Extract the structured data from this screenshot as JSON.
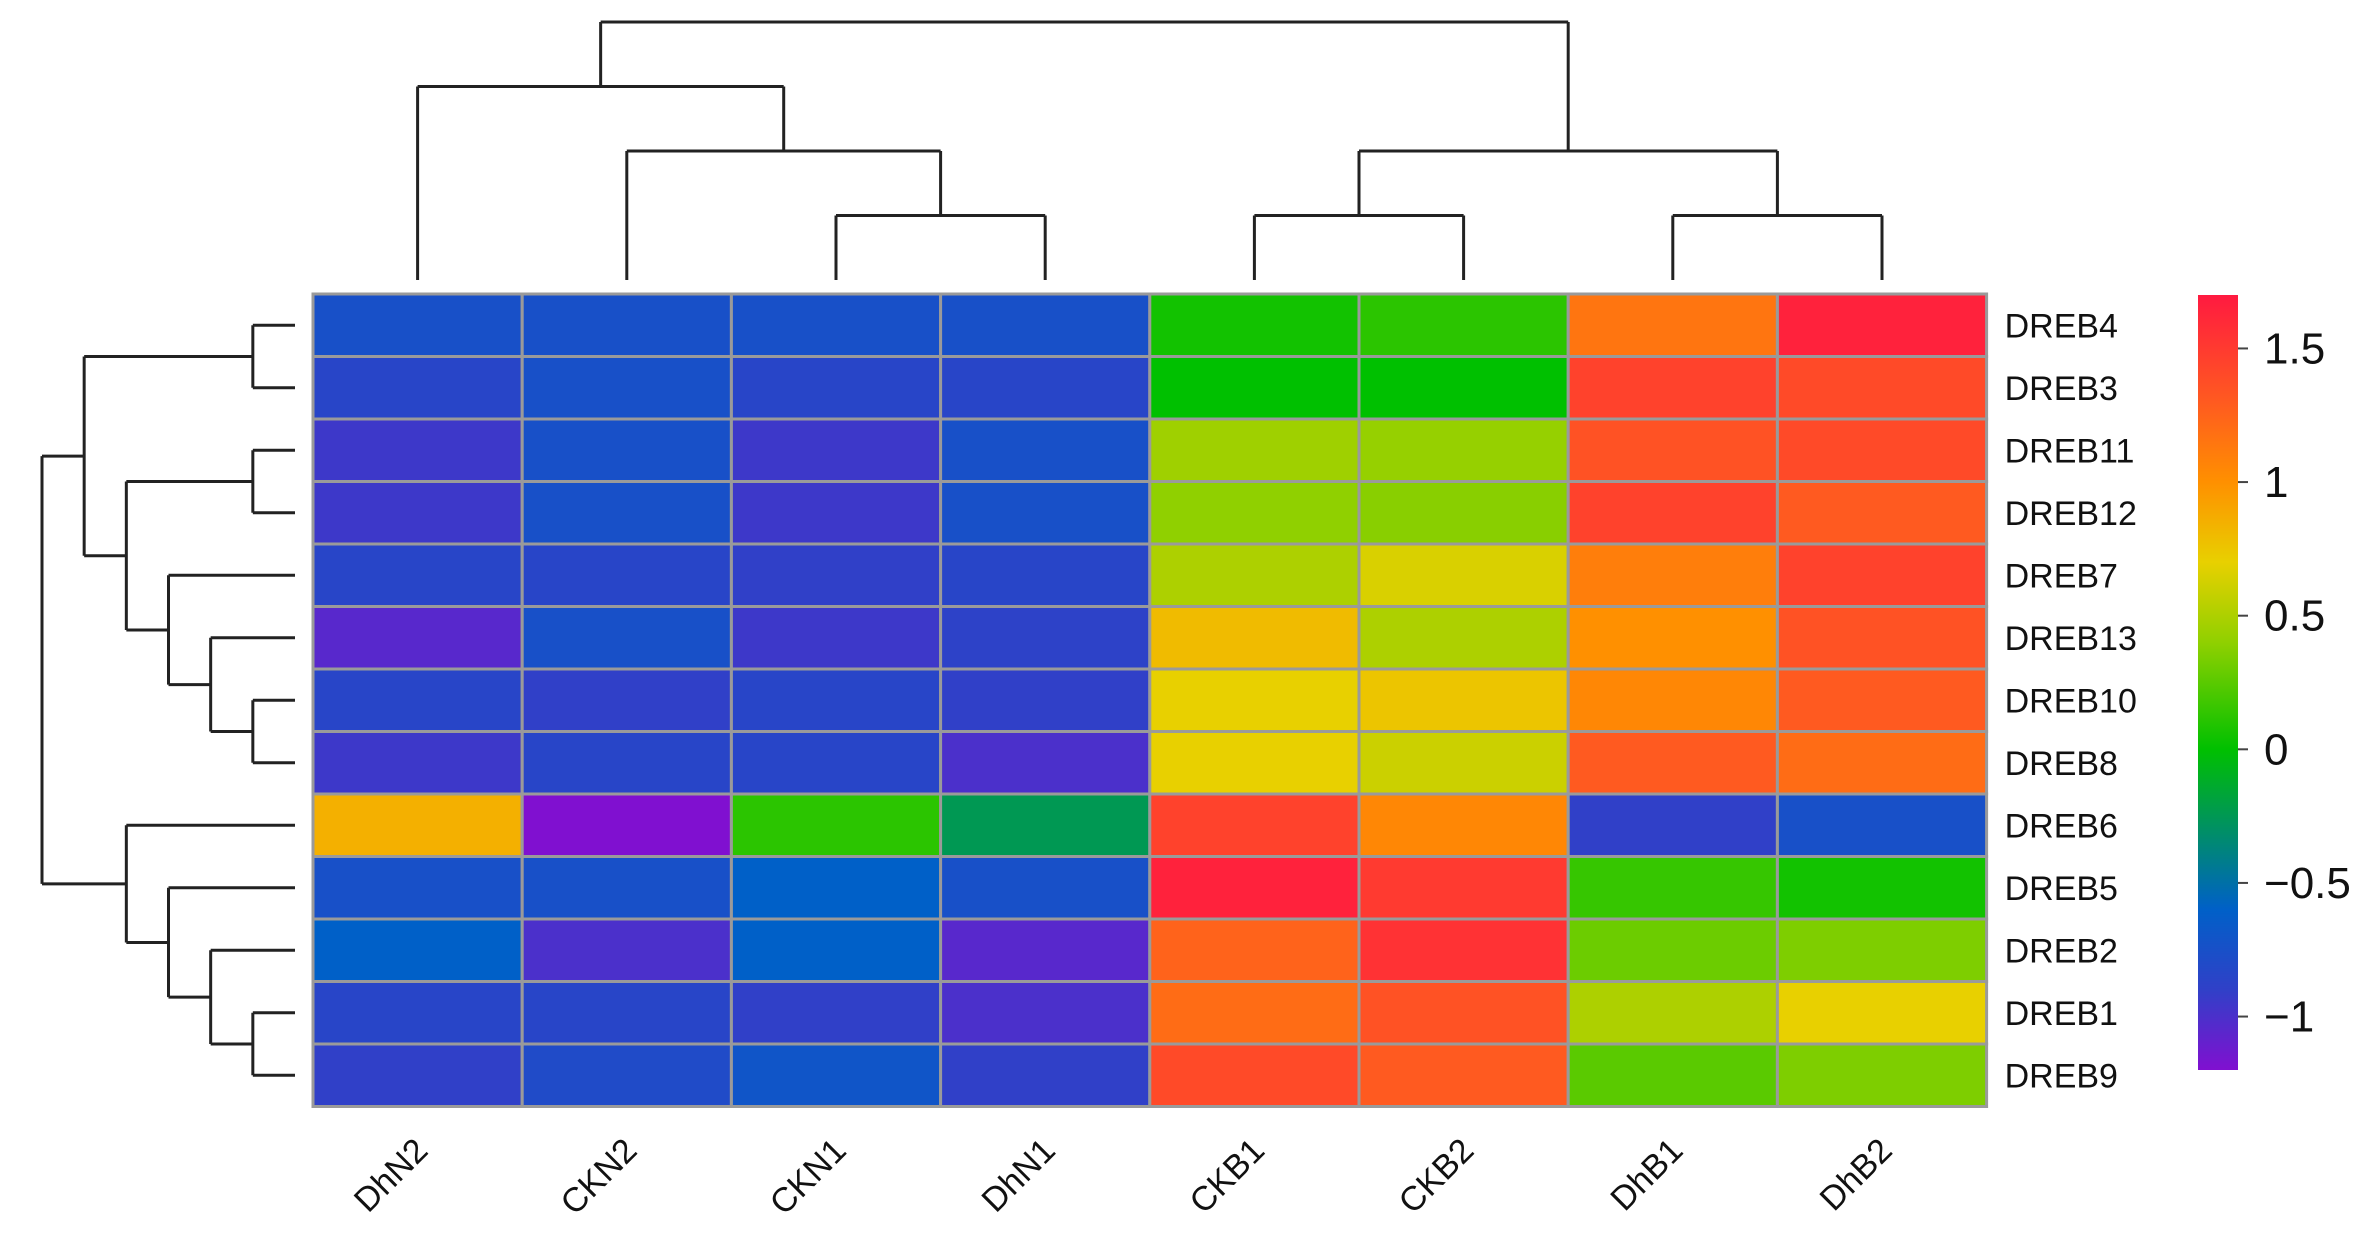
{
  "chart_data": {
    "type": "heatmap",
    "columns": [
      "DhN2",
      "CKN2",
      "CKN1",
      "DhN1",
      "CKB1",
      "CKB2",
      "DhB1",
      "DhB2"
    ],
    "rows": [
      "DREB4",
      "DREB3",
      "DREB11",
      "DREB12",
      "DREB7",
      "DREB13",
      "DREB10",
      "DREB8",
      "DREB6",
      "DREB5",
      "DREB2",
      "DREB1",
      "DREB9"
    ],
    "values": [
      [
        -0.75,
        -0.75,
        -0.75,
        -0.75,
        0.05,
        0.12,
        1.15,
        1.65
      ],
      [
        -0.85,
        -0.75,
        -0.85,
        -0.85,
        0.0,
        0.0,
        1.45,
        1.4
      ],
      [
        -0.95,
        -0.75,
        -0.95,
        -0.75,
        0.45,
        0.42,
        1.35,
        1.4
      ],
      [
        -0.95,
        -0.75,
        -0.95,
        -0.75,
        0.4,
        0.38,
        1.45,
        1.3
      ],
      [
        -0.85,
        -0.85,
        -0.9,
        -0.85,
        0.5,
        0.65,
        1.1,
        1.45
      ],
      [
        -1.05,
        -0.75,
        -0.95,
        -0.88,
        0.8,
        0.5,
        1.0,
        1.35
      ],
      [
        -0.85,
        -0.9,
        -0.85,
        -0.9,
        0.7,
        0.75,
        1.05,
        1.3
      ],
      [
        -0.95,
        -0.85,
        -0.85,
        -1.0,
        0.7,
        0.6,
        1.3,
        1.2
      ],
      [
        0.85,
        -1.2,
        0.12,
        -0.25,
        1.45,
        1.05,
        -0.9,
        -0.75
      ],
      [
        -0.75,
        -0.75,
        -0.6,
        -0.75,
        1.65,
        1.5,
        0.15,
        0.05
      ],
      [
        -0.6,
        -1.0,
        -0.6,
        -1.05,
        1.25,
        1.55,
        0.3,
        0.35
      ],
      [
        -0.85,
        -0.85,
        -0.9,
        -1.0,
        1.2,
        1.35,
        0.5,
        0.7
      ],
      [
        -0.9,
        -0.8,
        -0.7,
        -0.9,
        1.4,
        1.3,
        0.25,
        0.35
      ]
    ],
    "legend": {
      "min": -1.2,
      "max": 1.7,
      "ticks": [
        1.5,
        1,
        0.5,
        0,
        -0.5,
        -1
      ],
      "tick_labels": [
        "1.5",
        "1",
        "0.5",
        "0",
        "−0.5",
        "−1"
      ],
      "stops": [
        {
          "value": -1.2,
          "color": "#8010d0"
        },
        {
          "value": -0.9,
          "color": "#3040c8"
        },
        {
          "value": -0.6,
          "color": "#0060c8"
        },
        {
          "value": 0.0,
          "color": "#00c000"
        },
        {
          "value": 0.4,
          "color": "#90d000"
        },
        {
          "value": 0.7,
          "color": "#e8d000"
        },
        {
          "value": 1.0,
          "color": "#ff9000"
        },
        {
          "value": 1.3,
          "color": "#ff5a20"
        },
        {
          "value": 1.7,
          "color": "#ff1a40"
        }
      ]
    },
    "col_dendrogram": "((DhN2,(CKN2,(CKN1,DhN1))),((CKB1,CKB2),(DhB1,DhB2)))",
    "row_dendrogram": "((DREB4,DREB3),((DREB11,DREB12),(DREB7,(DREB13,(DREB10,DREB8))))),(DREB6,(DREB5,(DREB2,(DREB1,DREB9))))",
    "border_color": "#9a9a9a",
    "line_color": "#222222"
  }
}
